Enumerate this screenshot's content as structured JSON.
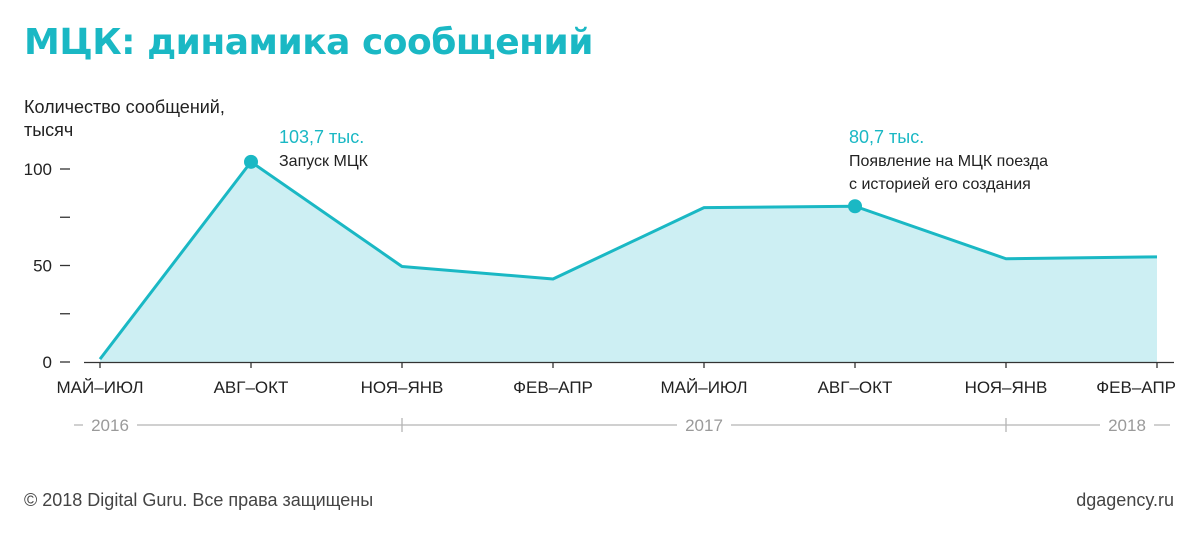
{
  "colors": {
    "accent": "#1ab8c4",
    "area": "#cdeff3",
    "axis": "#333333",
    "muted": "#9a9a9a"
  },
  "header": {
    "title": "МЦК: динамика сообщений"
  },
  "footer": {
    "copyright": "© 2018 Digital Guru. Все права защищены",
    "site": "dgagency.ru"
  },
  "chart_data": {
    "type": "area",
    "ylabel_lines": [
      "Количество сообщений,",
      "тысяч"
    ],
    "ylim": [
      0,
      100
    ],
    "yticks": [
      0,
      25,
      50,
      75,
      100
    ],
    "ytick_labels": [
      "0",
      "",
      "50",
      "",
      "100"
    ],
    "categories": [
      "МАЙ–ИЮЛ",
      "АВГ–ОКТ",
      "НОЯ–ЯНВ",
      "ФЕВ–АПР",
      "МАЙ–ИЮЛ",
      "АВГ–ОКТ",
      "НОЯ–ЯНВ",
      "ФЕВ–АПР"
    ],
    "series": [
      {
        "values": [
          1.5,
          103.7,
          49.5,
          43,
          80,
          80.7,
          53.5,
          54.5
        ]
      }
    ],
    "years": [
      {
        "label": "2016",
        "from": 0,
        "to": 2
      },
      {
        "label": "2017",
        "from": 2,
        "to": 6
      },
      {
        "label": "2018",
        "from": 6,
        "to": 7
      }
    ],
    "annotations": [
      {
        "index": 1,
        "value_label": "103,7 тыс.",
        "lines": [
          "Запуск МЦК"
        ]
      },
      {
        "index": 5,
        "value_label": "80,7 тыс.",
        "lines": [
          "Появление на МЦК поезда",
          "с историей его создания"
        ]
      }
    ]
  }
}
